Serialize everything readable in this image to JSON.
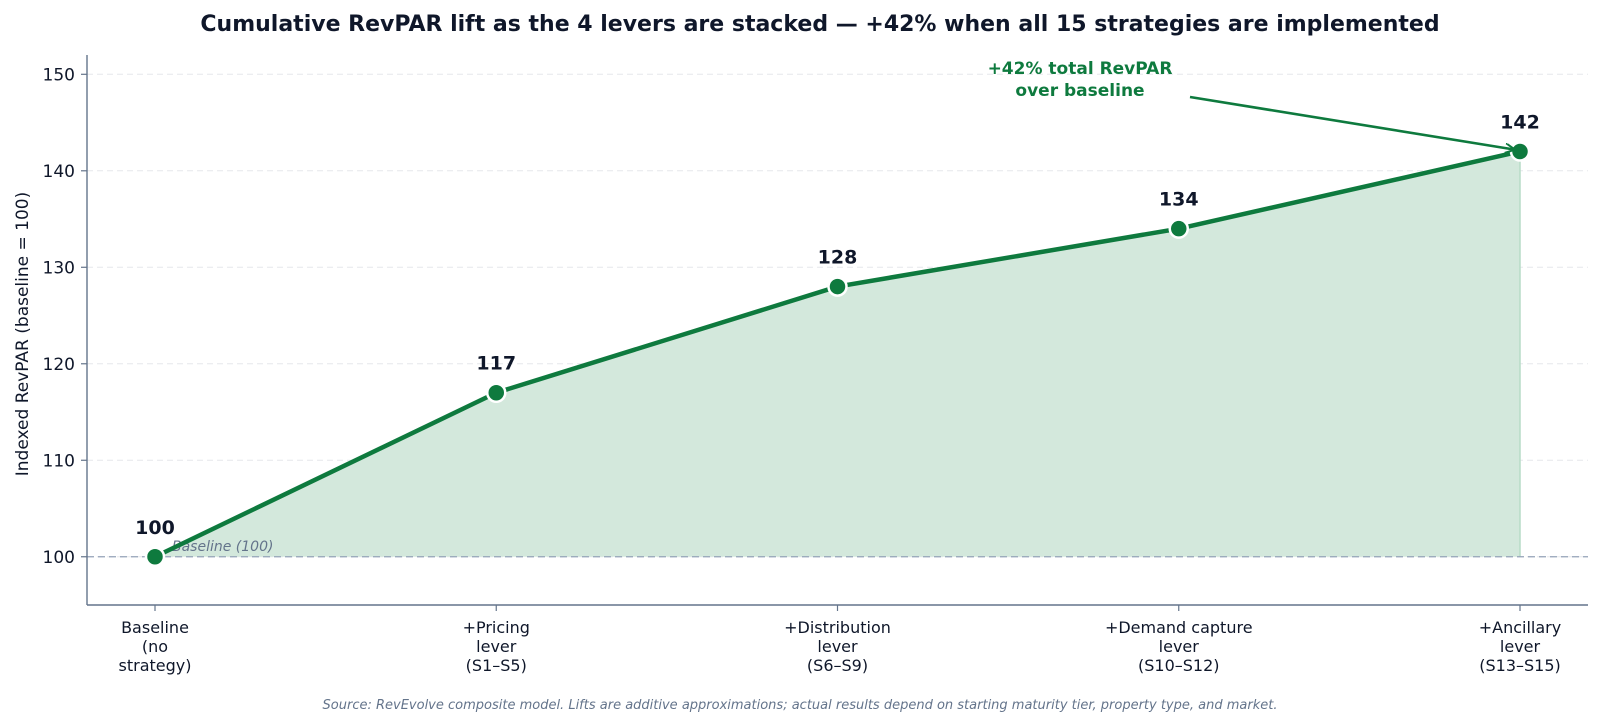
{
  "chart_data": {
    "type": "line",
    "title": "Cumulative RevPAR lift as the 4 levers are stacked — +42% when all 15 strategies are implemented",
    "ylabel": "Indexed RevPAR (baseline = 100)",
    "xlabel": "",
    "ylim": [
      95,
      152
    ],
    "yticks": [
      100,
      110,
      120,
      130,
      140,
      150
    ],
    "categories": [
      [
        "Baseline",
        "(no",
        "strategy)"
      ],
      [
        "+Pricing",
        "lever",
        "(S1–S5)"
      ],
      [
        "+Distribution",
        "lever",
        "(S6–S9)"
      ],
      [
        "+Demand capture",
        "lever",
        "(S10–S12)"
      ],
      [
        "+Ancillary",
        "lever",
        "(S13–S15)"
      ]
    ],
    "values": [
      100,
      117,
      128,
      134,
      142
    ],
    "data_labels": [
      "100",
      "117",
      "128",
      "134",
      "142"
    ],
    "baseline": {
      "value": 100,
      "label": "Baseline (100)"
    },
    "annotation": {
      "lines": [
        "+42% total RevPAR",
        "over baseline"
      ],
      "target_index": 4
    },
    "grid": {
      "y": true,
      "x": false,
      "style": "dashed"
    },
    "colors": {
      "line": "#0e7a3e",
      "fill": "#d3e8dc",
      "annotation": "#0e7a3e",
      "baseline": "#94a3b8",
      "axis": "#64748b",
      "grid": "#e5e7eb"
    }
  },
  "source": "Source: RevEvolve composite model. Lifts are additive approximations; actual results depend on starting maturity tier, property type, and market."
}
